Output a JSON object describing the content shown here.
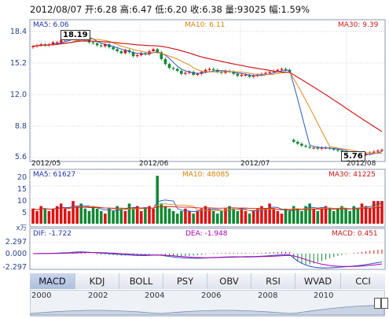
{
  "header": {
    "date": "2012/08/07",
    "open_label": "开:",
    "open": "6.28",
    "high_label": "高:",
    "high": "6.47",
    "low_label": "低:",
    "low": "6.20",
    "close_label": "收:",
    "close": "6.38",
    "volume_label": "量:",
    "volume": "93025",
    "change_label": "幅:",
    "change": "1.59%"
  },
  "price_panel": {
    "ma5": "MA5: 6.06",
    "ma10": "MA10: 6.11",
    "ma30": "MA30: 9.39",
    "y_ticks": [
      "18.4",
      "15.2",
      "12.0",
      "8.8",
      "5.6"
    ],
    "max_annotation": "18.19",
    "min_annotation": "5.76"
  },
  "date_ticks": [
    "2012/05",
    "2012/06",
    "2012/07",
    "2012/08"
  ],
  "volume_panel": {
    "ma5": "MA5: 61627",
    "ma10": "MA10: 48085",
    "ma30": "MA30: 41225",
    "y_ticks": [
      "20",
      "15",
      "10",
      "5"
    ],
    "unit": "x万"
  },
  "macd_panel": {
    "dif": "DIF: -1.722",
    "dea": "DEA: -1.948",
    "macd": "MACD: 0.451",
    "y_ticks": [
      "2.297",
      "0.000",
      "-2.297"
    ]
  },
  "tabs": [
    "MACD",
    "KDJ",
    "BOLL",
    "PSY",
    "OBV",
    "RSI",
    "WVAD",
    "CCI"
  ],
  "active_tab": "MACD",
  "nav_years": [
    "2000",
    "2002",
    "2004",
    "2006",
    "2008",
    "2010"
  ],
  "colors": {
    "up": "#dd1111",
    "down": "#118833",
    "ma5": "#2b56c2",
    "ma10": "#e08a1e",
    "ma30": "#d01c1c",
    "grid": "#9aa6bf"
  },
  "chart_data": [
    {
      "type": "candlestick",
      "title": "",
      "x": [
        "2012/05",
        "2012/06",
        "2012/07",
        "2012/08"
      ],
      "ylim": [
        5.6,
        18.4
      ],
      "series": [
        {
          "name": "MA5",
          "last": 6.06
        },
        {
          "name": "MA10",
          "last": 6.11
        },
        {
          "name": "MA30",
          "last": 9.39
        }
      ],
      "price_path": [
        16.9,
        17.0,
        17.1,
        17.0,
        17.1,
        17.3,
        17.3,
        17.5,
        17.6,
        17.7,
        18.0,
        18.19,
        17.9,
        17.6,
        17.3,
        17.2,
        17.0,
        16.9,
        17.1,
        16.8,
        16.6,
        16.4,
        16.2,
        16.5,
        16.3,
        15.9,
        16.0,
        16.2,
        16.1,
        16.4,
        16.6,
        16.3,
        15.6,
        15.1,
        14.7,
        14.6,
        14.4,
        14.1,
        14.2,
        14.3,
        14.0,
        14.1,
        14.3,
        14.5,
        14.6,
        14.5,
        14.3,
        14.2,
        14.4,
        14.3,
        14.1,
        13.9,
        14.0,
        14.0,
        13.8,
        13.9,
        14.0,
        14.1,
        14.2,
        14.3,
        14.4,
        14.5,
        14.6,
        14.5,
        14.3,
        7.2,
        7.0,
        6.8,
        6.7,
        6.6,
        6.6,
        6.5,
        6.6,
        6.6,
        6.5,
        6.4,
        6.3,
        6.2,
        6.1,
        5.9,
        5.8,
        5.76,
        5.9,
        6.0,
        6.1,
        6.2,
        6.3,
        6.38
      ]
    },
    {
      "type": "bar",
      "title": "",
      "ylabel": "x万",
      "ylim": [
        0,
        20
      ],
      "values": [
        6,
        5,
        7,
        6,
        5,
        6,
        7,
        8,
        6,
        5,
        9,
        7,
        8,
        6,
        5,
        7,
        6,
        5,
        4,
        6,
        5,
        7,
        6,
        5,
        8,
        6,
        7,
        5,
        6,
        7,
        6,
        19,
        8,
        7,
        6,
        5,
        4,
        5,
        6,
        5,
        4,
        5,
        6,
        7,
        6,
        5,
        4,
        5,
        6,
        7,
        6,
        5,
        6,
        5,
        4,
        5,
        6,
        7,
        6,
        8,
        6,
        5,
        4,
        6,
        5,
        7,
        6,
        5,
        7,
        8,
        6,
        5,
        6,
        7,
        6,
        5,
        6,
        7,
        6,
        5,
        7,
        6,
        8,
        7,
        6,
        9,
        9,
        9
      ]
    },
    {
      "type": "line",
      "title": "",
      "ylim": [
        -2.297,
        2.297
      ],
      "series": [
        {
          "name": "DIF",
          "last": -1.722
        },
        {
          "name": "DEA",
          "last": -1.948
        },
        {
          "name": "MACD",
          "last": 0.451
        }
      ]
    }
  ]
}
